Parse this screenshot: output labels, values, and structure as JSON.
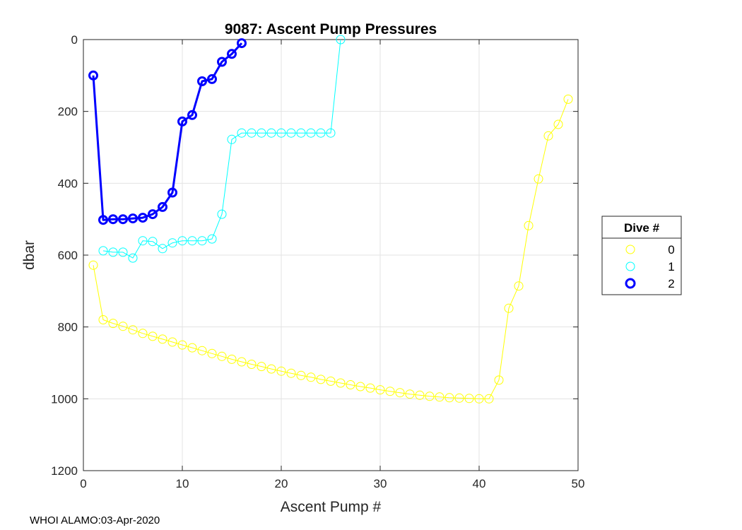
{
  "chart_data": {
    "type": "line",
    "title": "9087: Ascent Pump Pressures",
    "xlabel": "Ascent Pump #",
    "ylabel": "dbar",
    "xlim": [
      0,
      50
    ],
    "ylim": [
      0,
      1200
    ],
    "y_reversed": true,
    "x_ticks": [
      0,
      10,
      20,
      30,
      40,
      50
    ],
    "y_ticks": [
      0,
      200,
      400,
      600,
      800,
      1000,
      1200
    ],
    "grid": true,
    "legend_title": "Dive #",
    "legend_position": "right",
    "series": [
      {
        "name": "0",
        "color": "#ffff00",
        "line_width": 1,
        "marker": "circle",
        "x": [
          1,
          2,
          3,
          4,
          5,
          6,
          7,
          8,
          9,
          10,
          11,
          12,
          13,
          14,
          15,
          16,
          17,
          18,
          19,
          20,
          21,
          22,
          23,
          24,
          25,
          26,
          27,
          28,
          29,
          30,
          31,
          32,
          33,
          34,
          35,
          36,
          37,
          38,
          39,
          40,
          41,
          42,
          43,
          44,
          45,
          46,
          47,
          48,
          49
        ],
        "y": [
          628,
          780,
          790,
          798,
          808,
          818,
          826,
          834,
          842,
          850,
          858,
          866,
          874,
          882,
          890,
          897,
          904,
          910,
          917,
          923,
          929,
          935,
          940,
          946,
          951,
          956,
          961,
          966,
          970,
          975,
          979,
          983,
          987,
          990,
          993,
          995,
          997,
          998,
          999,
          1000,
          1000,
          948,
          748,
          686,
          518,
          388,
          268,
          236,
          166
        ]
      },
      {
        "name": "1",
        "color": "#00ffff",
        "line_width": 1,
        "marker": "circle",
        "x": [
          2,
          3,
          4,
          5,
          6,
          7,
          8,
          9,
          10,
          11,
          12,
          13,
          14,
          15,
          16,
          17,
          18,
          19,
          20,
          21,
          22,
          23,
          24,
          25,
          26
        ],
        "y": [
          588,
          592,
          592,
          608,
          560,
          562,
          582,
          566,
          560,
          560,
          560,
          555,
          486,
          278,
          260,
          260,
          260,
          260,
          260,
          260,
          260,
          260,
          260,
          260,
          0
        ]
      },
      {
        "name": "2",
        "color": "#0000ff",
        "line_width": 3,
        "marker": "circle",
        "x": [
          1,
          2,
          3,
          4,
          5,
          6,
          7,
          8,
          9,
          10,
          11,
          12,
          13,
          14,
          15,
          16
        ],
        "y": [
          100,
          502,
          500,
          500,
          498,
          496,
          486,
          466,
          426,
          228,
          210,
          116,
          110,
          62,
          40,
          10
        ]
      }
    ]
  },
  "footer": {
    "text": "WHOI ALAMO:03-Apr-2020"
  }
}
